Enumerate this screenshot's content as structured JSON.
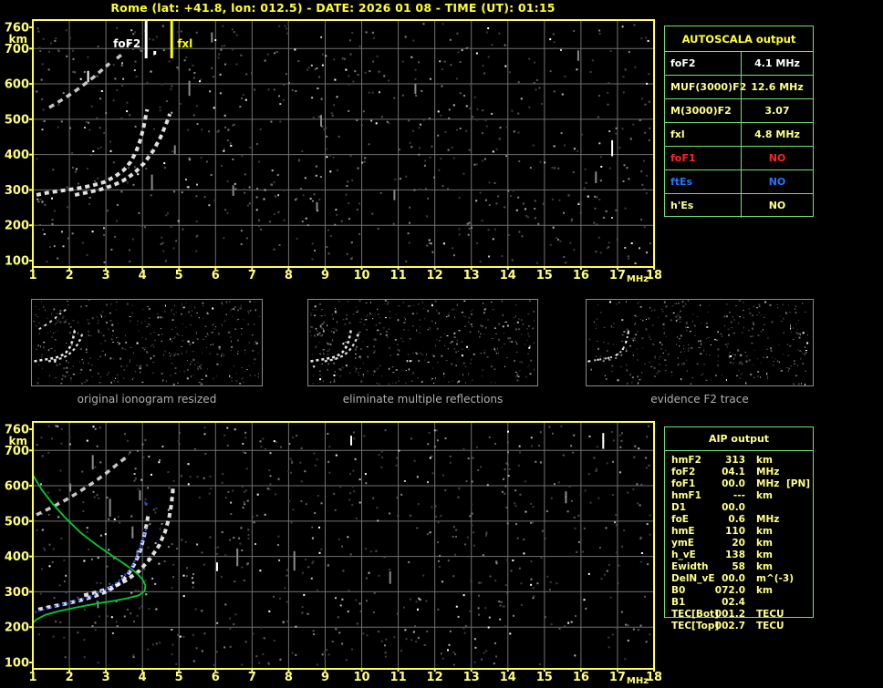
{
  "header": {
    "title": "Rome (lat: +41.8, lon: 012.5) - DATE: 2026 01 08 - TIME (UT): 01:15"
  },
  "colors": {
    "accent_yellow": "#ffff2e",
    "pale_yellow": "#ffff8c",
    "axis_yellow": "#ffff7a",
    "frame_yellow": "#ffff55",
    "table_green": "#71e071",
    "status_red": "#ff2222",
    "status_blue": "#2277ff",
    "trace_white": "#f2f2f2",
    "profile_green": "#00cc33",
    "autoscaled_blue": "#2b46ff",
    "grid_gray": "#707070",
    "caption_gray": "#b0b0b0"
  },
  "autoscala": {
    "title": "AUTOSCALA output",
    "rows": [
      {
        "param": "foF2",
        "value": "4.1 MHz",
        "color": "#ffffff"
      },
      {
        "param": "MUF(3000)F2",
        "value": "12.6 MHz",
        "color": "#ffff8c"
      },
      {
        "param": "M(3000)F2",
        "value": "3.07",
        "color": "#ffff8c"
      },
      {
        "param": "fxl",
        "value": "4.8 MHz",
        "color": "#ffff8c"
      },
      {
        "param": "foF1",
        "value": "NO",
        "color": "#ff2222"
      },
      {
        "param": "ftEs",
        "value": "NO",
        "color": "#2277ff"
      },
      {
        "param": "h'Es",
        "value": "NO",
        "color": "#ffff8c"
      }
    ]
  },
  "aip": {
    "title": "AIP output",
    "rows": [
      {
        "param": "hmF2",
        "value": "313",
        "unit": "km",
        "note": ""
      },
      {
        "param": "foF2",
        "value": "04.1",
        "unit": "MHz",
        "note": ""
      },
      {
        "param": "foF1",
        "value": "00.0",
        "unit": "MHz",
        "note": "[PN]"
      },
      {
        "param": "hmF1",
        "value": "---",
        "unit": "km",
        "note": ""
      },
      {
        "param": "D1",
        "value": "00.0",
        "unit": "",
        "note": ""
      },
      {
        "param": "foE",
        "value": "0.6",
        "unit": "MHz",
        "note": ""
      },
      {
        "param": "hmE",
        "value": "110",
        "unit": "km",
        "note": ""
      },
      {
        "param": "ymE",
        "value": "20",
        "unit": "km",
        "note": ""
      },
      {
        "param": "h_vE",
        "value": "138",
        "unit": "km",
        "note": ""
      },
      {
        "param": "Ewidth",
        "value": "58",
        "unit": "km",
        "note": ""
      },
      {
        "param": "DelN_vE",
        "value": "00.0",
        "unit": "m^(-3)",
        "note": ""
      },
      {
        "param": "B0",
        "value": "072.0",
        "unit": "km",
        "note": ""
      },
      {
        "param": "B1",
        "value": "02.4",
        "unit": "",
        "note": ""
      },
      {
        "param": "TEC[Bot]",
        "value": "001.2",
        "unit": "TECU",
        "note": ""
      },
      {
        "param": "TEC[Top]",
        "value": "002.7",
        "unit": "TECU",
        "note": ""
      }
    ]
  },
  "thumbnails": [
    {
      "caption": "original ionogram resized"
    },
    {
      "caption": "eliminate multiple reflections"
    },
    {
      "caption": "evidence F2 trace"
    }
  ],
  "chart_data": [
    {
      "type": "scatter",
      "title": "scaled ionogram with foF2 and fxl markers",
      "xlabel": "MHz",
      "ylabel": "km",
      "xlim": [
        1,
        18
      ],
      "ylim": [
        100,
        760
      ],
      "xticks": [
        1,
        2,
        3,
        4,
        5,
        6,
        7,
        8,
        9,
        10,
        11,
        12,
        13,
        14,
        15,
        16,
        17,
        18
      ],
      "yticks": [
        760,
        700,
        600,
        500,
        400,
        300,
        200,
        100
      ],
      "grid": true,
      "annotations": [
        {
          "label": "foF2",
          "x": 4.1,
          "color": "#ffffff",
          "side": "left",
          "dot": true
        },
        {
          "label": "fxl",
          "x": 4.8,
          "color": "#ffff00",
          "side": "right",
          "dot": false
        }
      ],
      "series": [
        {
          "name": "F2-ordinary-trace",
          "style": "echo",
          "color": "#f2f2f2",
          "points": [
            [
              1.1,
              286
            ],
            [
              1.4,
              292
            ],
            [
              1.8,
              298
            ],
            [
              2.2,
              304
            ],
            [
              2.6,
              312
            ],
            [
              2.95,
              322
            ],
            [
              3.25,
              338
            ],
            [
              3.5,
              357
            ],
            [
              3.68,
              380
            ],
            [
              3.82,
              407
            ],
            [
              3.93,
              438
            ],
            [
              4.02,
              472
            ],
            [
              4.08,
              503
            ],
            [
              4.13,
              528
            ]
          ]
        },
        {
          "name": "F2-extraordinary-trace",
          "style": "echo",
          "color": "#f2f2f2",
          "points": [
            [
              2.15,
              286
            ],
            [
              2.5,
              293
            ],
            [
              2.85,
              301
            ],
            [
              3.2,
              313
            ],
            [
              3.5,
              328
            ],
            [
              3.78,
              348
            ],
            [
              4.05,
              376
            ],
            [
              4.3,
              412
            ],
            [
              4.5,
              450
            ],
            [
              4.65,
              487
            ],
            [
              4.75,
              515
            ]
          ]
        },
        {
          "name": "second-hop-trace",
          "style": "echo2",
          "color": "#e8e8e8",
          "points": [
            [
              1.45,
              533
            ],
            [
              1.75,
              552
            ],
            [
              2.05,
              572
            ],
            [
              2.35,
              594
            ],
            [
              2.65,
              618
            ],
            [
              2.9,
              640
            ],
            [
              3.1,
              658
            ]
          ]
        },
        {
          "name": "second-hop-trace-b",
          "style": "echo2",
          "color": "#e8e8e8",
          "points": [
            [
              3.3,
              672
            ],
            [
              3.5,
              688
            ]
          ]
        }
      ]
    },
    {
      "type": "scatter",
      "title": "ionogram with autoscaled trace and electron density profile",
      "xlabel": "MHz",
      "ylabel": "km",
      "xlim": [
        1,
        18
      ],
      "ylim": [
        100,
        760
      ],
      "xticks": [
        1,
        2,
        3,
        4,
        5,
        6,
        7,
        8,
        9,
        10,
        11,
        12,
        13,
        14,
        15,
        16,
        17,
        18
      ],
      "yticks": [
        760,
        700,
        600,
        500,
        400,
        300,
        200,
        100
      ],
      "grid": true,
      "annotations": [],
      "series": [
        {
          "name": "F2-ordinary-trace",
          "style": "echo",
          "color": "#f2f2f2",
          "points": [
            [
              1.15,
              250
            ],
            [
              1.5,
              258
            ],
            [
              1.9,
              266
            ],
            [
              2.3,
              276
            ],
            [
              2.7,
              288
            ],
            [
              3.05,
              302
            ],
            [
              3.35,
              322
            ],
            [
              3.6,
              348
            ],
            [
              3.8,
              382
            ],
            [
              3.95,
              420
            ],
            [
              4.05,
              460
            ],
            [
              4.12,
              495
            ],
            [
              4.16,
              520
            ]
          ]
        },
        {
          "name": "F2-extraordinary-trace",
          "style": "echo",
          "color": "#f2f2f2",
          "points": [
            [
              2.4,
              290
            ],
            [
              2.8,
              300
            ],
            [
              3.2,
              314
            ],
            [
              3.55,
              332
            ],
            [
              3.9,
              358
            ],
            [
              4.2,
              392
            ],
            [
              4.45,
              430
            ],
            [
              4.62,
              470
            ],
            [
              4.73,
              510
            ],
            [
              4.79,
              545
            ],
            [
              4.82,
              575
            ],
            [
              4.84,
              600
            ]
          ]
        },
        {
          "name": "second-hop-trace",
          "style": "echo2",
          "color": "#e8e8e8",
          "points": [
            [
              1.1,
              518
            ],
            [
              1.5,
              538
            ],
            [
              1.9,
              560
            ],
            [
              2.3,
              585
            ],
            [
              2.7,
              612
            ],
            [
              3.0,
              635
            ],
            [
              3.3,
              660
            ],
            [
              3.55,
              680
            ]
          ]
        },
        {
          "name": "electron-density-profile",
          "style": "line",
          "color": "#00cc33",
          "points": [
            [
              1.0,
              630
            ],
            [
              1.25,
              588
            ],
            [
              1.55,
              548
            ],
            [
              1.9,
              508
            ],
            [
              2.3,
              468
            ],
            [
              2.75,
              432
            ],
            [
              3.2,
              400
            ],
            [
              3.6,
              372
            ],
            [
              3.85,
              352
            ],
            [
              4.0,
              335
            ],
            [
              4.08,
              318
            ],
            [
              4.06,
              302
            ],
            [
              3.9,
              290
            ],
            [
              3.6,
              282
            ],
            [
              3.2,
              274
            ],
            [
              2.7,
              266
            ],
            [
              2.2,
              256
            ],
            [
              1.7,
              245
            ],
            [
              1.35,
              235
            ],
            [
              1.1,
              222
            ],
            [
              1.0,
              212
            ]
          ]
        },
        {
          "name": "autoscaled-trace",
          "style": "points",
          "color": "#2b46ff",
          "points": [
            [
              1.05,
              242
            ],
            [
              1.25,
              248
            ],
            [
              1.45,
              254
            ],
            [
              1.65,
              260
            ],
            [
              1.85,
              265
            ],
            [
              2.05,
              270
            ],
            [
              2.25,
              276
            ],
            [
              2.45,
              282
            ],
            [
              2.65,
              290
            ],
            [
              2.85,
              299
            ],
            [
              3.0,
              307
            ],
            [
              3.15,
              316
            ],
            [
              3.3,
              327
            ],
            [
              3.45,
              340
            ],
            [
              3.6,
              356
            ],
            [
              3.72,
              374
            ],
            [
              3.82,
              394
            ],
            [
              3.9,
              414
            ],
            [
              3.96,
              434
            ],
            [
              4.02,
              452
            ],
            [
              4.07,
              468
            ],
            [
              4.12,
              483
            ]
          ]
        },
        {
          "name": "autoscaled-outlier-point",
          "style": "marker",
          "color": "#2b46ff",
          "points": [
            [
              4.1,
              548
            ]
          ]
        }
      ]
    }
  ]
}
